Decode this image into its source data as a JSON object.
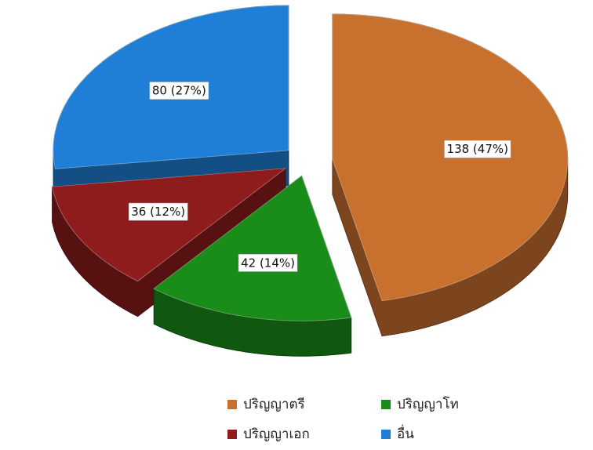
{
  "chart_data": {
    "type": "pie",
    "style": "3d-exploded",
    "categories": [
      "ปริญญาตรี",
      "ปริญญาโท",
      "ปริญญาเอก",
      "อื่น"
    ],
    "values": [
      138,
      42,
      36,
      80
    ],
    "value_labels": [
      "138 (47%)",
      "42 (14%)",
      "36 (12%)",
      "80 (27%)"
    ],
    "colors": [
      "#c8702e",
      "#1a8c1a",
      "#8e1c1c",
      "#1f7fd6"
    ],
    "legend": "bottom"
  }
}
